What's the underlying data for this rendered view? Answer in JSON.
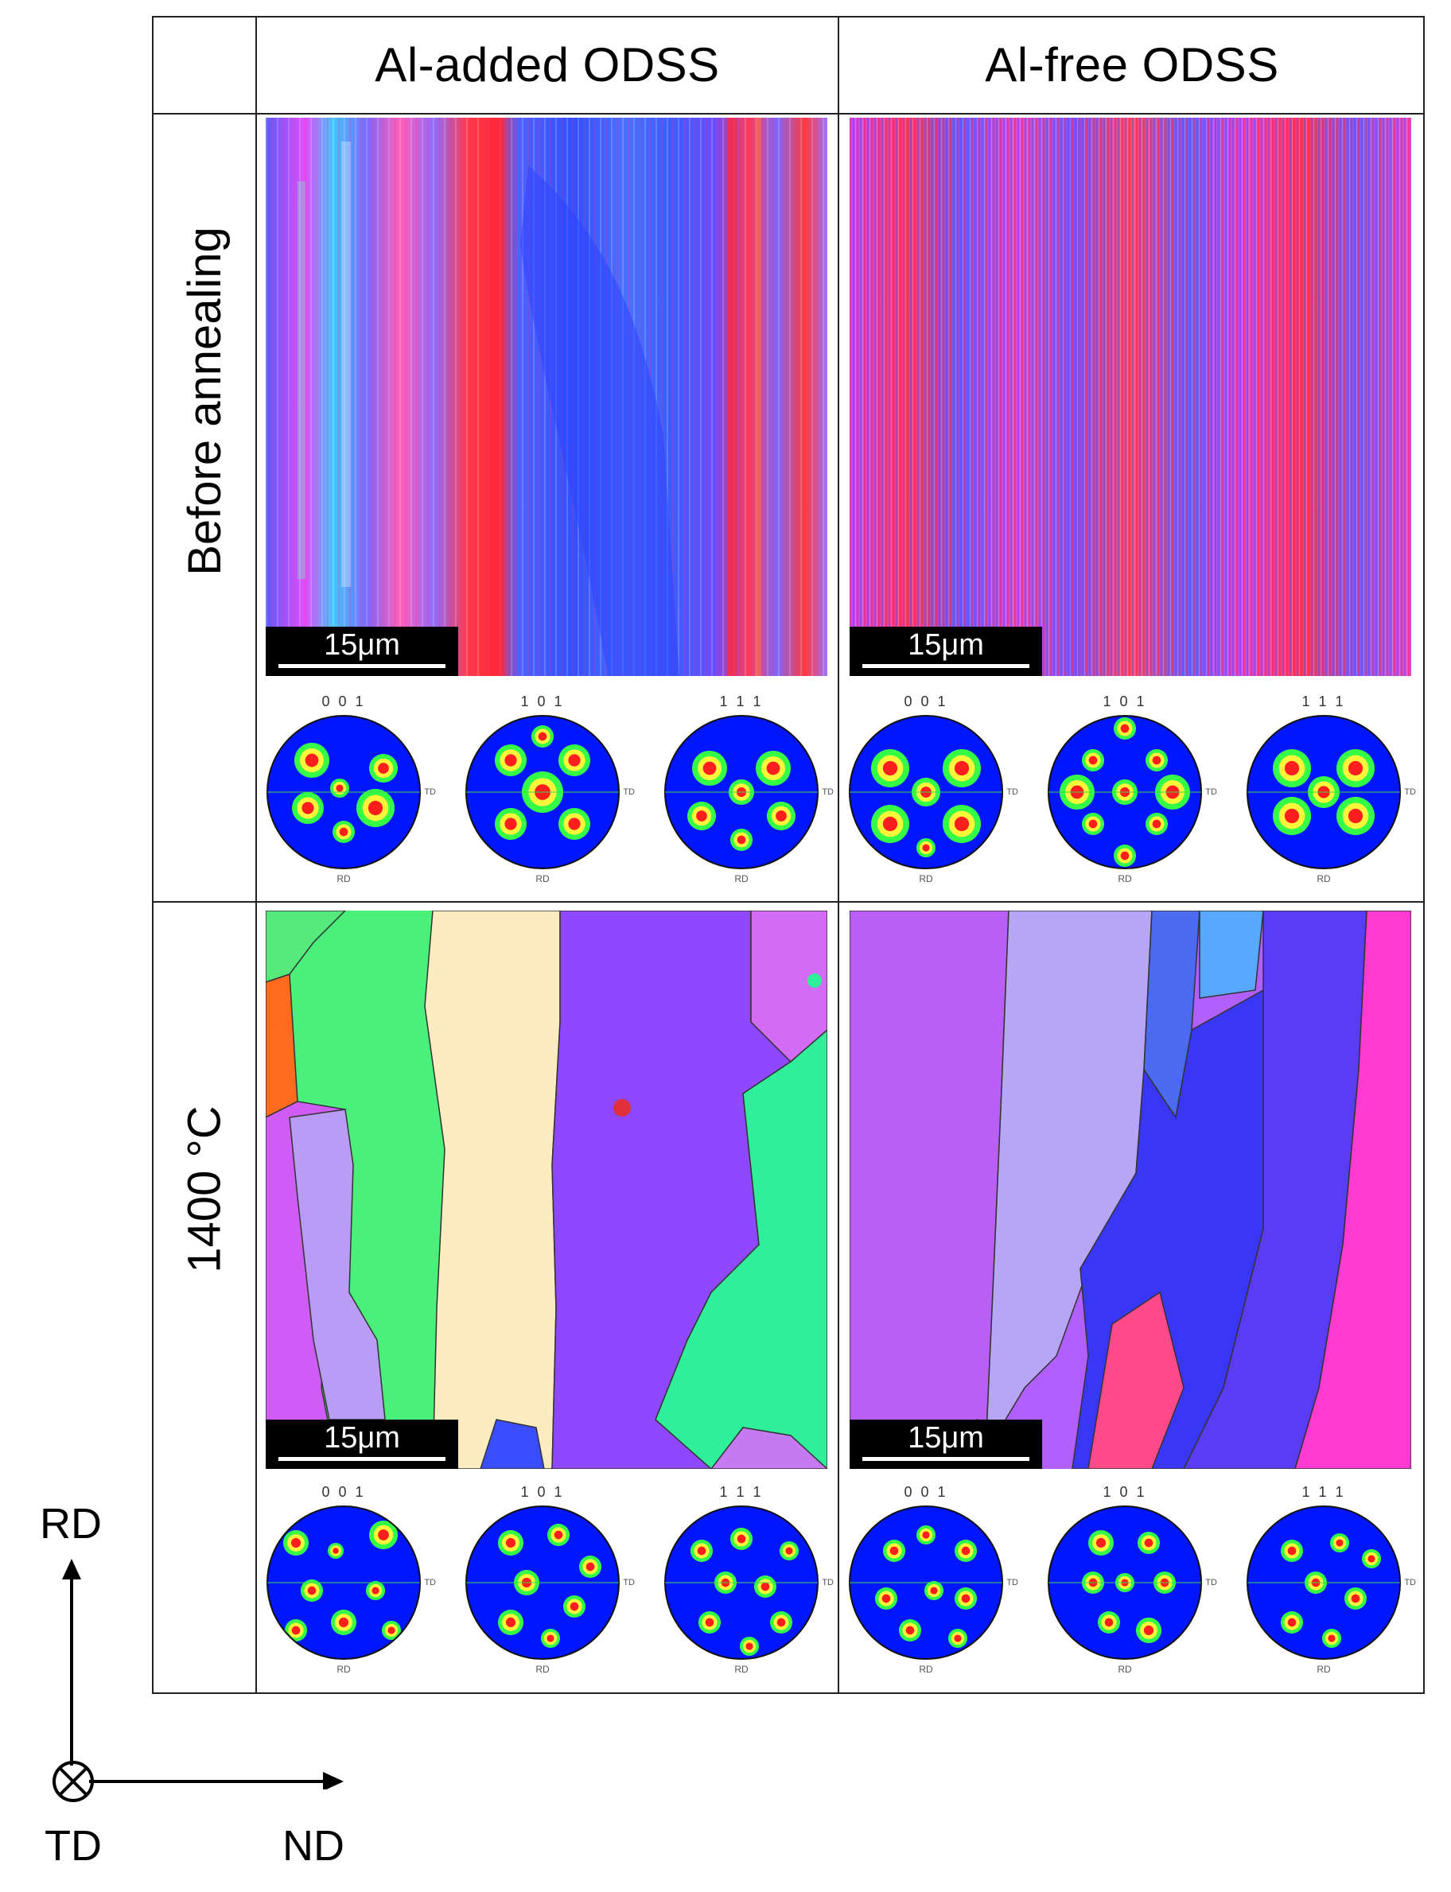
{
  "columns": [
    "Al-added ODSS",
    "Al-free ODSS"
  ],
  "rows": [
    "Before annealing",
    "1400 °C"
  ],
  "scale_bar": "15μm",
  "pole_figure_labels": [
    "0 0 1",
    "1 0 1",
    "1 1 1"
  ],
  "pole_figure_axes": {
    "bottom": "RD",
    "right": "TD"
  },
  "axes": {
    "up": "RD",
    "right": "ND",
    "origin": "TD"
  },
  "colors": {
    "ipf_red": "#ff2a3a",
    "ipf_blue": "#3a4dff",
    "ipf_magenta": "#e14cff",
    "pf_background": "#0016ff",
    "pf_low": "#34ff46",
    "pf_mid": "#fff53a",
    "pf_high": "#ff1e1e"
  }
}
